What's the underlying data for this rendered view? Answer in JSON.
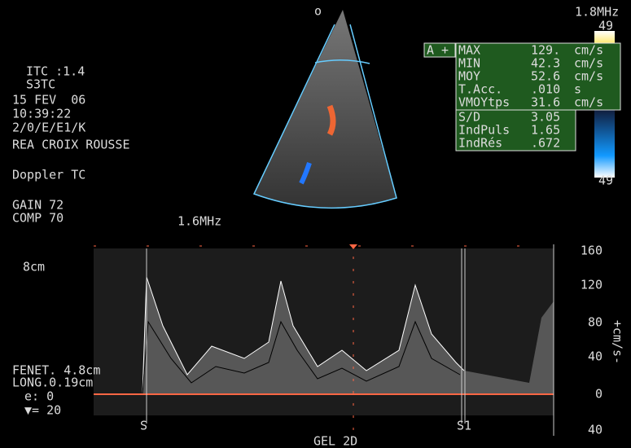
{
  "header": {
    "marker": "o",
    "probe_freq": "1.8MHz",
    "scale_top": "49",
    "scale_bottom": "49"
  },
  "left_panel": {
    "itc": "ITC :1.4",
    "preset": "S3TC",
    "date": "15 FEV  06",
    "time": "10:39:22",
    "code": "2/0/E/E1/K",
    "site": "REA CROIX ROUSSE",
    "mode": "Doppler TC",
    "gain": "GAIN 72",
    "comp": "COMP 70",
    "freq": "1.6MHz"
  },
  "measurements": {
    "tag": "A +",
    "rows": [
      [
        "MAX",
        "129.",
        "cm/s"
      ],
      [
        "MIN",
        "42.3",
        "cm/s"
      ],
      [
        "MOY",
        "52.6",
        "cm/s"
      ],
      [
        "T.Acc.",
        ".010",
        "s"
      ],
      [
        "VMOYtps",
        "31.6",
        "cm/s"
      ]
    ],
    "indices": [
      [
        "S/D",
        "3.05"
      ],
      [
        "IndPuls",
        "1.65"
      ],
      [
        "IndRés",
        ".672"
      ]
    ]
  },
  "doppler": {
    "depth": "8cm",
    "window": "FENET. 4.8cm",
    "length": "LONG.0.19cm",
    "e": "e: 0",
    "angle": "▼= 20",
    "marker_s": "S",
    "marker_s1": "S1",
    "gel": "GEL 2D",
    "unit": "+cm/s-",
    "scale_labels": [
      "160",
      "120",
      "80",
      "40",
      "0",
      "40"
    ]
  }
}
